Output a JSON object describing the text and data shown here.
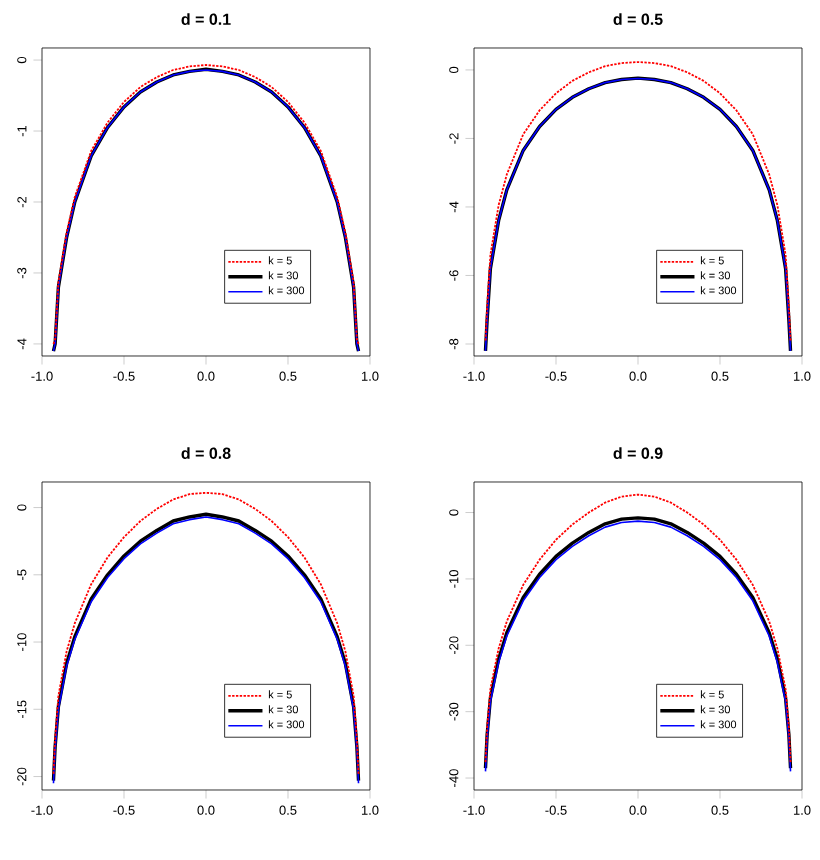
{
  "chart_data": [
    {
      "type": "line",
      "title": "d = 0.1",
      "legend": "bottom right",
      "x": [
        -0.93,
        -0.92,
        -0.9,
        -0.85,
        -0.8,
        -0.7,
        -0.6,
        -0.5,
        -0.4,
        -0.3,
        -0.2,
        -0.1,
        0,
        0.1,
        0.2,
        0.3,
        0.4,
        0.5,
        0.6,
        0.7,
        0.8,
        0.85,
        0.9,
        0.92,
        0.93
      ],
      "xlim": [
        -1,
        1
      ],
      "ylim": [
        -4.17,
        0.17
      ],
      "xticks": [
        {
          "value": -1,
          "label": "-1.0"
        },
        {
          "value": -0.5,
          "label": "-0.5"
        },
        {
          "value": 0,
          "label": "0.0"
        },
        {
          "value": 0.5,
          "label": "0.5"
        },
        {
          "value": 1,
          "label": "1.0"
        }
      ],
      "yticks": [
        -4,
        -3,
        -2,
        -1,
        0
      ],
      "series": [
        {
          "name": "k = 5",
          "color": "#ff0000",
          "line_style": "dotted",
          "values": [
            -4.0,
            -3.93,
            -3.13,
            -2.43,
            -1.93,
            -1.28,
            -0.88,
            -0.59,
            -0.38,
            -0.24,
            -0.14,
            -0.09,
            -0.07,
            -0.09,
            -0.14,
            -0.24,
            -0.38,
            -0.59,
            -0.88,
            -1.28,
            -1.93,
            -2.43,
            -3.13,
            -3.93,
            -4.0
          ]
        },
        {
          "name": "k = 30",
          "color": "#000000",
          "line_style": "solid",
          "values": [
            -4.1,
            -4.0,
            -3.2,
            -2.5,
            -2.0,
            -1.35,
            -0.95,
            -0.66,
            -0.45,
            -0.31,
            -0.21,
            -0.16,
            -0.13,
            -0.16,
            -0.21,
            -0.31,
            -0.45,
            -0.66,
            -0.95,
            -1.35,
            -2.0,
            -2.5,
            -3.2,
            -4.0,
            -4.1
          ]
        },
        {
          "name": "k = 300",
          "color": "#0000ff",
          "line_style": "solid",
          "values": [
            -4.1,
            -4.0,
            -3.2,
            -2.5,
            -2.0,
            -1.35,
            -0.95,
            -0.66,
            -0.45,
            -0.31,
            -0.21,
            -0.16,
            -0.14,
            -0.16,
            -0.21,
            -0.31,
            -0.45,
            -0.66,
            -0.95,
            -1.35,
            -2.0,
            -2.5,
            -3.2,
            -4.0,
            -4.1
          ]
        }
      ]
    },
    {
      "type": "line",
      "title": "d = 0.5",
      "legend": "bottom right",
      "x": [
        -0.93,
        -0.92,
        -0.9,
        -0.85,
        -0.8,
        -0.7,
        -0.6,
        -0.5,
        -0.4,
        -0.3,
        -0.2,
        -0.1,
        0,
        0.1,
        0.2,
        0.3,
        0.4,
        0.5,
        0.6,
        0.7,
        0.8,
        0.85,
        0.9,
        0.92,
        0.93
      ],
      "xlim": [
        -1,
        1
      ],
      "ylim": [
        -8.35,
        0.64
      ],
      "xticks": [
        {
          "value": -1,
          "label": "-1.0"
        },
        {
          "value": -0.5,
          "label": "-0.5"
        },
        {
          "value": 0,
          "label": "0.0"
        },
        {
          "value": 0.5,
          "label": "0.5"
        },
        {
          "value": 1,
          "label": "1.0"
        }
      ],
      "yticks": [
        -8,
        -6,
        -4,
        -2,
        0
      ],
      "series": [
        {
          "name": "k = 5",
          "color": "#ff0000",
          "line_style": "dotted",
          "values": [
            -7.9,
            -6.9,
            -5.4,
            -3.95,
            -3.05,
            -1.88,
            -1.18,
            -0.68,
            -0.32,
            -0.07,
            0.11,
            0.2,
            0.23,
            0.2,
            0.11,
            -0.07,
            -0.32,
            -0.68,
            -1.18,
            -1.88,
            -3.05,
            -3.95,
            -5.4,
            -6.9,
            -7.9
          ]
        },
        {
          "name": "k = 30",
          "color": "#000000",
          "line_style": "solid",
          "values": [
            -8.2,
            -7.3,
            -5.8,
            -4.4,
            -3.5,
            -2.35,
            -1.65,
            -1.15,
            -0.8,
            -0.55,
            -0.37,
            -0.28,
            -0.24,
            -0.28,
            -0.37,
            -0.55,
            -0.8,
            -1.15,
            -1.65,
            -2.35,
            -3.5,
            -4.4,
            -5.8,
            -7.3,
            -8.2
          ]
        },
        {
          "name": "k = 300",
          "color": "#0000ff",
          "line_style": "solid",
          "values": [
            -8.2,
            -7.3,
            -5.8,
            -4.4,
            -3.5,
            -2.35,
            -1.65,
            -1.15,
            -0.8,
            -0.55,
            -0.37,
            -0.28,
            -0.25,
            -0.28,
            -0.37,
            -0.55,
            -0.8,
            -1.15,
            -1.65,
            -2.35,
            -3.5,
            -4.4,
            -5.8,
            -7.3,
            -8.2
          ]
        }
      ]
    },
    {
      "type": "line",
      "title": "d = 0.8",
      "legend": "bottom right",
      "x": [
        -0.93,
        -0.92,
        -0.9,
        -0.85,
        -0.8,
        -0.7,
        -0.6,
        -0.5,
        -0.4,
        -0.3,
        -0.2,
        -0.1,
        0,
        0.1,
        0.2,
        0.3,
        0.4,
        0.5,
        0.6,
        0.7,
        0.8,
        0.85,
        0.9,
        0.92,
        0.93
      ],
      "xlim": [
        -1,
        1
      ],
      "ylim": [
        -21,
        1.9
      ],
      "xticks": [
        {
          "value": -1,
          "label": "-1.0"
        },
        {
          "value": -0.5,
          "label": "-0.5"
        },
        {
          "value": 0,
          "label": "0.0"
        },
        {
          "value": 0.5,
          "label": "0.5"
        },
        {
          "value": 1,
          "label": "1.0"
        }
      ],
      "yticks": [
        -20,
        -15,
        -10,
        -5,
        0
      ],
      "series": [
        {
          "name": "k = 5",
          "color": "#ff0000",
          "line_style": "dotted",
          "values": [
            -19.8,
            -17.2,
            -14.0,
            -10.7,
            -8.6,
            -5.7,
            -3.7,
            -2.2,
            -1.0,
            -0.1,
            0.6,
            1.0,
            1.1,
            1.0,
            0.6,
            -0.1,
            -1.0,
            -2.2,
            -3.7,
            -5.7,
            -8.6,
            -10.7,
            -14.0,
            -17.2,
            -19.8
          ]
        },
        {
          "name": "k = 30",
          "color": "#000000",
          "line_style": "solid",
          "values": [
            -20.3,
            -17.8,
            -14.8,
            -11.6,
            -9.6,
            -6.8,
            -5.0,
            -3.6,
            -2.5,
            -1.7,
            -1.0,
            -0.7,
            -0.5,
            -0.7,
            -1.0,
            -1.7,
            -2.5,
            -3.6,
            -5.0,
            -6.8,
            -9.6,
            -11.6,
            -14.8,
            -17.8,
            -20.3
          ]
        },
        {
          "name": "k = 300",
          "color": "#0000ff",
          "line_style": "solid",
          "values": [
            -20.5,
            -18.0,
            -15.0,
            -11.8,
            -9.8,
            -7.0,
            -5.2,
            -3.8,
            -2.7,
            -1.9,
            -1.2,
            -0.9,
            -0.7,
            -0.9,
            -1.2,
            -1.9,
            -2.7,
            -3.8,
            -5.2,
            -7.0,
            -9.8,
            -11.8,
            -15.0,
            -18.0,
            -20.5
          ]
        }
      ]
    },
    {
      "type": "line",
      "title": "d = 0.9",
      "legend": "bottom right",
      "x": [
        -0.93,
        -0.92,
        -0.9,
        -0.85,
        -0.8,
        -0.7,
        -0.6,
        -0.5,
        -0.4,
        -0.3,
        -0.2,
        -0.1,
        0,
        0.1,
        0.2,
        0.3,
        0.4,
        0.5,
        0.6,
        0.7,
        0.8,
        0.85,
        0.9,
        0.92,
        0.93
      ],
      "xlim": [
        -1,
        1
      ],
      "ylim": [
        -41.8,
        4.6
      ],
      "xticks": [
        {
          "value": -1,
          "label": "-1.0"
        },
        {
          "value": -0.5,
          "label": "-0.5"
        },
        {
          "value": 0,
          "label": "0.0"
        },
        {
          "value": 0.5,
          "label": "0.5"
        },
        {
          "value": 1,
          "label": "1.0"
        }
      ],
      "yticks": [
        -40,
        -30,
        -20,
        -10,
        0
      ],
      "series": [
        {
          "name": "k = 5",
          "color": "#ff0000",
          "line_style": "dotted",
          "values": [
            -37.6,
            -32.3,
            -26.6,
            -20.5,
            -16.4,
            -10.9,
            -7.1,
            -4.1,
            -1.8,
            0.0,
            1.5,
            2.4,
            2.7,
            2.4,
            1.5,
            0.0,
            -1.8,
            -4.1,
            -7.1,
            -10.9,
            -16.4,
            -20.5,
            -26.6,
            -32.3,
            -37.6
          ]
        },
        {
          "name": "k = 30",
          "color": "#000000",
          "line_style": "solid",
          "values": [
            -38.5,
            -33.5,
            -28.0,
            -22.1,
            -18.1,
            -12.8,
            -9.3,
            -6.6,
            -4.6,
            -3.0,
            -1.7,
            -1.0,
            -0.8,
            -1.0,
            -1.7,
            -3.0,
            -4.6,
            -6.6,
            -9.3,
            -12.8,
            -18.1,
            -22.1,
            -28.0,
            -33.5,
            -38.5
          ]
        },
        {
          "name": "k = 300",
          "color": "#0000ff",
          "line_style": "solid",
          "values": [
            -39.0,
            -34.0,
            -28.5,
            -22.6,
            -18.6,
            -13.3,
            -9.8,
            -7.1,
            -5.1,
            -3.5,
            -2.2,
            -1.5,
            -1.3,
            -1.5,
            -2.2,
            -3.5,
            -5.1,
            -7.1,
            -9.8,
            -13.3,
            -18.6,
            -22.6,
            -28.5,
            -34.0,
            -39.0
          ]
        }
      ]
    }
  ]
}
